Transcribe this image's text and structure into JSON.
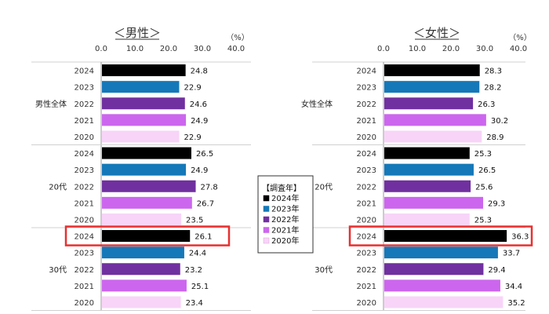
{
  "legend": {
    "title": "【調査年】",
    "entries": [
      {
        "label": "2024年",
        "color": "#000000"
      },
      {
        "label": "2023年",
        "color": "#1578b8"
      },
      {
        "label": "2022年",
        "color": "#7030a0"
      },
      {
        "label": "2021年",
        "color": "#cc66ee"
      },
      {
        "label": "2020年",
        "color": "#f8d4f8"
      }
    ]
  },
  "highlight_color": "#e83030",
  "chart_data": [
    {
      "type": "bar",
      "orientation": "horizontal",
      "title": "＜男性＞",
      "unit": "（%）",
      "xlim": [
        0,
        40
      ],
      "x_ticks": [
        "0.0",
        "10.0",
        "20.0",
        "30.0",
        "40.0"
      ],
      "highlight": {
        "group": "30代",
        "year": "2024"
      },
      "groups": [
        {
          "name": "男性全体",
          "rows": [
            {
              "year": "2024",
              "value": 24.8,
              "label": "24.8"
            },
            {
              "year": "2023",
              "value": 22.9,
              "label": "22.9"
            },
            {
              "year": "2022",
              "value": 24.6,
              "label": "24.6"
            },
            {
              "year": "2021",
              "value": 24.9,
              "label": "24.9"
            },
            {
              "year": "2020",
              "value": 22.9,
              "label": "22.9"
            }
          ]
        },
        {
          "name": "20代",
          "rows": [
            {
              "year": "2024",
              "value": 26.5,
              "label": "26.5"
            },
            {
              "year": "2023",
              "value": 24.9,
              "label": "24.9"
            },
            {
              "year": "2022",
              "value": 27.8,
              "label": "27.8"
            },
            {
              "year": "2021",
              "value": 26.7,
              "label": "26.7"
            },
            {
              "year": "2020",
              "value": 23.5,
              "label": "23.5"
            }
          ]
        },
        {
          "name": "30代",
          "rows": [
            {
              "year": "2024",
              "value": 26.1,
              "label": "26.1"
            },
            {
              "year": "2023",
              "value": 24.4,
              "label": "24.4"
            },
            {
              "year": "2022",
              "value": 23.2,
              "label": "23.2"
            },
            {
              "year": "2021",
              "value": 25.1,
              "label": "25.1"
            },
            {
              "year": "2020",
              "value": 23.4,
              "label": "23.4"
            }
          ]
        }
      ]
    },
    {
      "type": "bar",
      "orientation": "horizontal",
      "title": "＜女性＞",
      "unit": "（%）",
      "xlim": [
        0,
        40
      ],
      "x_ticks": [
        "0.0",
        "10.0",
        "20.0",
        "30.0",
        "40.0"
      ],
      "highlight": {
        "group": "30代",
        "year": "2024"
      },
      "groups": [
        {
          "name": "女性全体",
          "rows": [
            {
              "year": "2024",
              "value": 28.3,
              "label": "28.3"
            },
            {
              "year": "2023",
              "value": 28.2,
              "label": "28.2"
            },
            {
              "year": "2022",
              "value": 26.3,
              "label": "26.3"
            },
            {
              "year": "2021",
              "value": 30.2,
              "label": "30.2"
            },
            {
              "year": "2020",
              "value": 28.9,
              "label": "28.9"
            }
          ]
        },
        {
          "name": "20代",
          "rows": [
            {
              "year": "2024",
              "value": 25.3,
              "label": "25.3"
            },
            {
              "year": "2023",
              "value": 26.5,
              "label": "26.5"
            },
            {
              "year": "2022",
              "value": 25.6,
              "label": "25.6"
            },
            {
              "year": "2021",
              "value": 29.3,
              "label": "29.3"
            },
            {
              "year": "2020",
              "value": 25.3,
              "label": "25.3"
            }
          ]
        },
        {
          "name": "30代",
          "rows": [
            {
              "year": "2024",
              "value": 36.3,
              "label": "36.3"
            },
            {
              "year": "2023",
              "value": 33.7,
              "label": "33.7"
            },
            {
              "year": "2022",
              "value": 29.4,
              "label": "29.4"
            },
            {
              "year": "2021",
              "value": 34.4,
              "label": "34.4"
            },
            {
              "year": "2020",
              "value": 35.2,
              "label": "35.2"
            }
          ]
        }
      ]
    }
  ]
}
